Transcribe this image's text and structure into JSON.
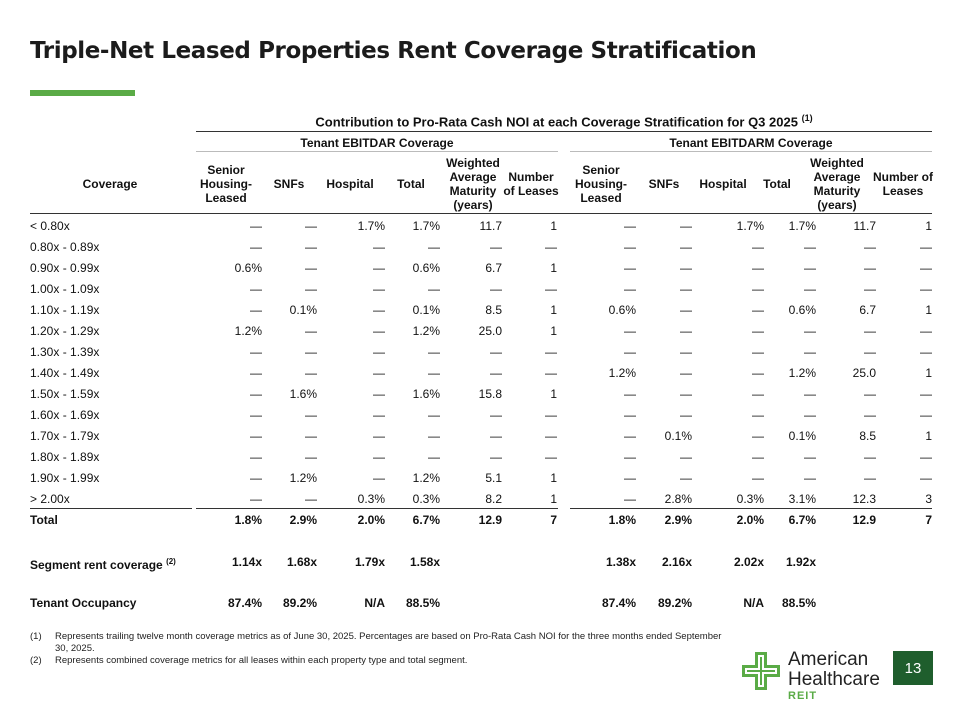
{
  "title": "Triple-Net Leased Properties Rent Coverage Stratification",
  "supertitle": "Contribution to Pro-Rata Cash NOI at each Coverage Stratification for Q3 2025",
  "supertitle_note": "(1)",
  "groups": [
    "Tenant EBITDAR Coverage",
    "Tenant EBITDARM Coverage"
  ],
  "headers": {
    "coverage": "Coverage",
    "cols": [
      "Senior Housing- Leased",
      "SNFs",
      "Hospital",
      "Total",
      "Weighted Average Maturity (years)",
      "Number of Leases"
    ]
  },
  "rows": [
    {
      "label": "< 0.80x",
      "ebitdar": [
        "—",
        "—",
        "1.7%",
        "1.7%",
        "11.7",
        "1"
      ],
      "ebitdarm": [
        "—",
        "—",
        "1.7%",
        "1.7%",
        "11.7",
        "1"
      ]
    },
    {
      "label": "0.80x - 0.89x",
      "ebitdar": [
        "—",
        "—",
        "—",
        "—",
        "—",
        "—"
      ],
      "ebitdarm": [
        "—",
        "—",
        "—",
        "—",
        "—",
        "—"
      ]
    },
    {
      "label": "0.90x - 0.99x",
      "ebitdar": [
        "0.6%",
        "—",
        "—",
        "0.6%",
        "6.7",
        "1"
      ],
      "ebitdarm": [
        "—",
        "—",
        "—",
        "—",
        "—",
        "—"
      ]
    },
    {
      "label": "1.00x - 1.09x",
      "ebitdar": [
        "—",
        "—",
        "—",
        "—",
        "—",
        "—"
      ],
      "ebitdarm": [
        "—",
        "—",
        "—",
        "—",
        "—",
        "—"
      ]
    },
    {
      "label": "1.10x - 1.19x",
      "ebitdar": [
        "—",
        "0.1%",
        "—",
        "0.1%",
        "8.5",
        "1"
      ],
      "ebitdarm": [
        "0.6%",
        "—",
        "—",
        "0.6%",
        "6.7",
        "1"
      ]
    },
    {
      "label": "1.20x - 1.29x",
      "ebitdar": [
        "1.2%",
        "—",
        "—",
        "1.2%",
        "25.0",
        "1"
      ],
      "ebitdarm": [
        "—",
        "—",
        "—",
        "—",
        "—",
        "—"
      ]
    },
    {
      "label": "1.30x - 1.39x",
      "ebitdar": [
        "—",
        "—",
        "—",
        "—",
        "—",
        "—"
      ],
      "ebitdarm": [
        "—",
        "—",
        "—",
        "—",
        "—",
        "—"
      ]
    },
    {
      "label": "1.40x - 1.49x",
      "ebitdar": [
        "—",
        "—",
        "—",
        "—",
        "—",
        "—"
      ],
      "ebitdarm": [
        "1.2%",
        "—",
        "—",
        "1.2%",
        "25.0",
        "1"
      ]
    },
    {
      "label": "1.50x - 1.59x",
      "ebitdar": [
        "—",
        "1.6%",
        "—",
        "1.6%",
        "15.8",
        "1"
      ],
      "ebitdarm": [
        "—",
        "—",
        "—",
        "—",
        "—",
        "—"
      ]
    },
    {
      "label": "1.60x - 1.69x",
      "ebitdar": [
        "—",
        "—",
        "—",
        "—",
        "—",
        "—"
      ],
      "ebitdarm": [
        "—",
        "—",
        "—",
        "—",
        "—",
        "—"
      ]
    },
    {
      "label": "1.70x - 1.79x",
      "ebitdar": [
        "—",
        "—",
        "—",
        "—",
        "—",
        "—"
      ],
      "ebitdarm": [
        "—",
        "0.1%",
        "—",
        "0.1%",
        "8.5",
        "1"
      ]
    },
    {
      "label": "1.80x - 1.89x",
      "ebitdar": [
        "—",
        "—",
        "—",
        "—",
        "—",
        "—"
      ],
      "ebitdarm": [
        "—",
        "—",
        "—",
        "—",
        "—",
        "—"
      ]
    },
    {
      "label": "1.90x - 1.99x",
      "ebitdar": [
        "—",
        "1.2%",
        "—",
        "1.2%",
        "5.1",
        "1"
      ],
      "ebitdarm": [
        "—",
        "—",
        "—",
        "—",
        "—",
        "—"
      ]
    },
    {
      "label": "> 2.00x",
      "ebitdar": [
        "—",
        "—",
        "0.3%",
        "0.3%",
        "8.2",
        "1"
      ],
      "ebitdarm": [
        "—",
        "2.8%",
        "0.3%",
        "3.1%",
        "12.3",
        "3"
      ]
    }
  ],
  "total": {
    "label": "Total",
    "ebitdar": [
      "1.8%",
      "2.9%",
      "2.0%",
      "6.7%",
      "12.9",
      "7"
    ],
    "ebitdarm": [
      "1.8%",
      "2.9%",
      "2.0%",
      "6.7%",
      "12.9",
      "7"
    ]
  },
  "segment_rent_coverage": {
    "label": "Segment rent coverage",
    "note": "(2)",
    "ebitdar": [
      "1.14x",
      "1.68x",
      "1.79x",
      "1.58x"
    ],
    "ebitdarm": [
      "1.38x",
      "2.16x",
      "2.02x",
      "1.92x"
    ]
  },
  "tenant_occupancy": {
    "label": "Tenant Occupancy",
    "ebitdar": [
      "87.4%",
      "89.2%",
      "N/A",
      "88.5%"
    ],
    "ebitdarm": [
      "87.4%",
      "89.2%",
      "N/A",
      "88.5%"
    ]
  },
  "footnotes": [
    {
      "num": "(1)",
      "text": "Represents trailing twelve month coverage metrics as of June 30, 2025. Percentages are based on Pro-Rata Cash NOI for the three months ended September 30, 2025."
    },
    {
      "num": "(2)",
      "text": "Represents combined coverage metrics for all leases within each property type and total segment."
    }
  ],
  "logo": {
    "line1": "American",
    "line2": "Healthcare",
    "line3": "REIT",
    "cross_color": "#5aab46"
  },
  "page_number": "13",
  "colors": {
    "accent_green": "#5aab46",
    "page_badge": "#1f5e2d"
  }
}
